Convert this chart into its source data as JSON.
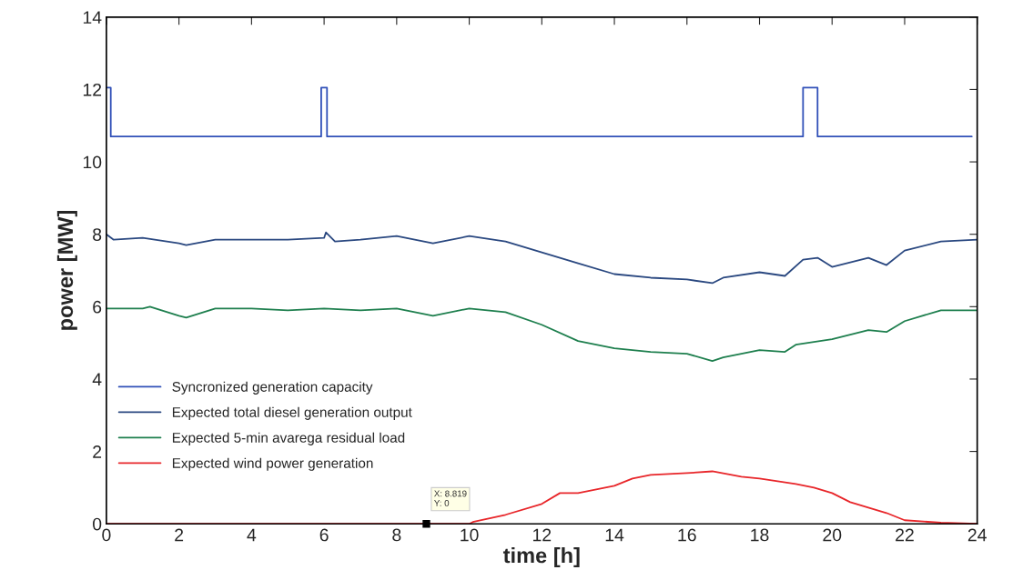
{
  "chart_data": {
    "type": "line",
    "xlabel": "time [h]",
    "ylabel": "power [MW]",
    "xlim": [
      0,
      24
    ],
    "ylim": [
      0,
      14
    ],
    "xticks": [
      0,
      2,
      4,
      6,
      8,
      10,
      12,
      14,
      16,
      18,
      20,
      22,
      24
    ],
    "yticks": [
      0,
      2,
      4,
      6,
      8,
      10,
      12,
      14
    ],
    "grid": false,
    "legend": "left",
    "marker": "none",
    "line_style": "solid",
    "series": [
      {
        "name": "Syncronized generation capacity",
        "type": "step",
        "color": "#3050b8",
        "x": [
          0,
          0.12,
          5.92,
          6.08,
          19.2,
          19.6,
          23.85
        ],
        "values": [
          12.05,
          10.7,
          12.05,
          10.7,
          12.05,
          10.7,
          10.7
        ]
      },
      {
        "name": "Expected total diesel generation output",
        "color": "#2a4880",
        "x": [
          0,
          0.2,
          1,
          2,
          2.2,
          3,
          4,
          5,
          6,
          6.05,
          6.3,
          7,
          8,
          9,
          10,
          11,
          12,
          13,
          14,
          15,
          16,
          16.7,
          17,
          18,
          18.7,
          19.2,
          19.6,
          20,
          21,
          21.5,
          22,
          23,
          24
        ],
        "values": [
          8.0,
          7.85,
          7.9,
          7.75,
          7.7,
          7.85,
          7.85,
          7.85,
          7.9,
          8.05,
          7.8,
          7.85,
          7.95,
          7.75,
          7.95,
          7.8,
          7.5,
          7.2,
          6.9,
          6.8,
          6.75,
          6.65,
          6.8,
          6.95,
          6.85,
          7.3,
          7.35,
          7.1,
          7.35,
          7.15,
          7.55,
          7.8,
          7.85
        ]
      },
      {
        "name": "Expected 5-min avarega residual load",
        "color": "#1e7f4e",
        "x": [
          0,
          1,
          1.2,
          2,
          2.2,
          3,
          4,
          5,
          6,
          7,
          8,
          9,
          10,
          11,
          12,
          13,
          14,
          15,
          16,
          16.7,
          17,
          18,
          18.7,
          19,
          20,
          21,
          21.5,
          22,
          23,
          24
        ],
        "values": [
          5.95,
          5.95,
          6.0,
          5.75,
          5.7,
          5.95,
          5.95,
          5.9,
          5.95,
          5.9,
          5.95,
          5.75,
          5.95,
          5.85,
          5.5,
          5.05,
          4.85,
          4.75,
          4.7,
          4.5,
          4.6,
          4.8,
          4.75,
          4.95,
          5.1,
          5.35,
          5.3,
          5.6,
          5.9,
          5.9
        ]
      },
      {
        "name": "Expected wind power generation",
        "color": "#e8262a",
        "x": [
          0,
          10,
          10.1,
          11,
          12,
          12.5,
          13,
          14,
          14.5,
          15,
          16,
          16.7,
          17.5,
          18,
          19,
          19.5,
          20,
          20.5,
          21,
          21.5,
          22,
          23,
          24
        ],
        "values": [
          0,
          0,
          0.05,
          0.25,
          0.55,
          0.85,
          0.85,
          1.05,
          1.25,
          1.35,
          1.4,
          1.45,
          1.3,
          1.25,
          1.1,
          1.0,
          0.85,
          0.6,
          0.45,
          0.3,
          0.1,
          0.03,
          0
        ]
      }
    ],
    "annotations": [
      {
        "text": "X: 8.819\nY: 0",
        "x": 8.819,
        "y": 0
      }
    ]
  }
}
